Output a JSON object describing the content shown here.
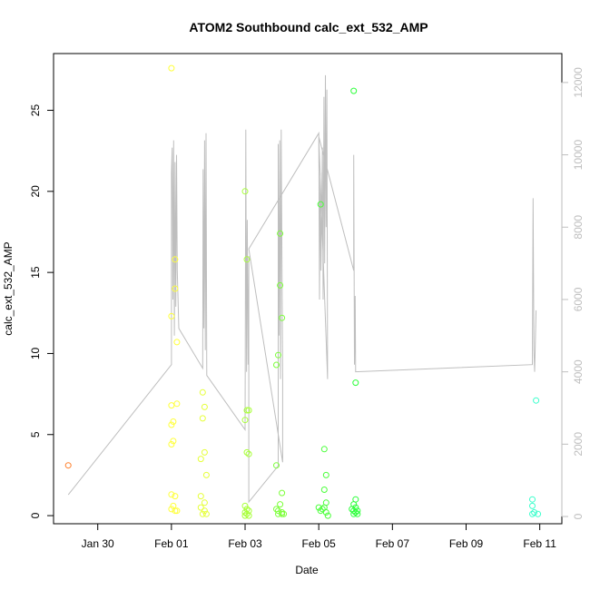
{
  "chart_data": {
    "type": "scatter",
    "title": "ATOM2 Southbound calc_ext_532_AMP",
    "xlabel": "Date",
    "ylabel": "calc_ext_532_AMP",
    "x_ticks": [
      "Jan 30",
      "Feb 01",
      "Feb 03",
      "Feb 05",
      "Feb 07",
      "Feb 09",
      "Feb 11"
    ],
    "x_tick_days": [
      29,
      31,
      33,
      35,
      37,
      39,
      41
    ],
    "xlim_days": [
      27.8,
      41.6
    ],
    "ylim": [
      -0.5,
      28.5
    ],
    "y_ticks": [
      0,
      5,
      10,
      15,
      20,
      25
    ],
    "y2lim": [
      -200,
      12800
    ],
    "y2_ticks": [
      0,
      2000,
      4000,
      6000,
      8000,
      10000,
      12000
    ],
    "grid": false,
    "colors": {
      "jan28": "#ff7f2a",
      "feb01": "#ffff3a",
      "feb02": "#e6ff3a",
      "feb03": "#a8ff3a",
      "feb04": "#7cff3a",
      "feb05": "#4bff3a",
      "feb06": "#2cff3a",
      "feb10": "#3affcc",
      "line": "#bebebe"
    },
    "series": [
      {
        "color_key": "jan28",
        "points": [
          [
            28.2,
            3.1
          ]
        ]
      },
      {
        "color_key": "feb01",
        "points": [
          [
            31.0,
            27.6
          ],
          [
            31.0,
            12.3
          ],
          [
            31.1,
            15.8
          ],
          [
            31.1,
            14.0
          ],
          [
            31.15,
            10.7
          ],
          [
            31.0,
            6.8
          ],
          [
            31.15,
            6.9
          ],
          [
            31.05,
            5.8
          ],
          [
            31.0,
            5.6
          ],
          [
            31.05,
            4.6
          ],
          [
            31.0,
            4.4
          ],
          [
            31.0,
            1.3
          ],
          [
            31.1,
            1.2
          ],
          [
            31.05,
            0.6
          ],
          [
            31.0,
            0.4
          ],
          [
            31.1,
            0.3
          ],
          [
            31.15,
            0.3
          ]
        ]
      },
      {
        "color_key": "feb02",
        "points": [
          [
            31.85,
            7.6
          ],
          [
            31.9,
            6.7
          ],
          [
            31.85,
            6.0
          ],
          [
            31.9,
            3.9
          ],
          [
            31.8,
            3.5
          ],
          [
            31.95,
            2.5
          ],
          [
            31.8,
            1.2
          ],
          [
            31.9,
            0.8
          ],
          [
            31.8,
            0.5
          ],
          [
            31.9,
            0.3
          ],
          [
            31.85,
            0.1
          ],
          [
            31.95,
            0.1
          ]
        ]
      },
      {
        "color_key": "feb03",
        "points": [
          [
            33.0,
            20.0
          ],
          [
            33.05,
            15.8
          ],
          [
            33.05,
            6.5
          ],
          [
            33.1,
            6.5
          ],
          [
            33.0,
            5.9
          ],
          [
            33.05,
            3.9
          ],
          [
            33.1,
            3.8
          ],
          [
            33.0,
            0.6
          ],
          [
            33.05,
            0.4
          ],
          [
            33.1,
            0.3
          ],
          [
            33.0,
            0.2
          ],
          [
            33.05,
            0.1
          ],
          [
            33.0,
            0.0
          ],
          [
            33.1,
            0.0
          ]
        ]
      },
      {
        "color_key": "feb04",
        "points": [
          [
            33.95,
            17.4
          ],
          [
            33.95,
            14.2
          ],
          [
            34.0,
            12.2
          ],
          [
            33.9,
            9.9
          ],
          [
            33.85,
            9.3
          ],
          [
            33.85,
            3.1
          ],
          [
            34.0,
            1.4
          ],
          [
            33.95,
            0.7
          ],
          [
            33.85,
            0.4
          ],
          [
            33.9,
            0.3
          ],
          [
            34.0,
            0.2
          ],
          [
            34.05,
            0.1
          ],
          [
            33.9,
            0.1
          ],
          [
            34.0,
            0.1
          ]
        ]
      },
      {
        "color_key": "feb05",
        "points": [
          [
            35.05,
            19.2
          ],
          [
            35.15,
            4.1
          ],
          [
            35.2,
            2.5
          ],
          [
            35.15,
            1.6
          ],
          [
            35.2,
            0.8
          ],
          [
            35.15,
            0.5
          ],
          [
            35.0,
            0.5
          ],
          [
            35.1,
            0.4
          ],
          [
            35.05,
            0.3
          ],
          [
            35.2,
            0.2
          ],
          [
            35.25,
            0.0
          ]
        ]
      },
      {
        "color_key": "feb06",
        "points": [
          [
            35.95,
            26.2
          ],
          [
            36.0,
            8.2
          ],
          [
            36.0,
            1.0
          ],
          [
            35.95,
            0.7
          ],
          [
            36.0,
            0.5
          ],
          [
            35.9,
            0.4
          ],
          [
            35.95,
            0.3
          ],
          [
            36.05,
            0.3
          ],
          [
            36.0,
            0.2
          ],
          [
            35.95,
            0.1
          ],
          [
            36.05,
            0.1
          ]
        ]
      },
      {
        "color_key": "feb10",
        "points": [
          [
            40.9,
            7.1
          ],
          [
            40.8,
            1.0
          ],
          [
            40.8,
            0.6
          ],
          [
            40.85,
            0.2
          ],
          [
            40.95,
            0.1
          ],
          [
            40.8,
            0.1
          ]
        ]
      }
    ],
    "secondary_series": {
      "name": "",
      "axis": "right",
      "color_key": "line",
      "points": [
        [
          28.2,
          600
        ],
        [
          31.0,
          4200
        ],
        [
          31.0,
          9500
        ],
        [
          31.02,
          10200
        ],
        [
          31.04,
          6000
        ],
        [
          31.06,
          10400
        ],
        [
          31.08,
          5000
        ],
        [
          31.1,
          9800
        ],
        [
          31.12,
          5800
        ],
        [
          31.14,
          10000
        ],
        [
          31.16,
          6800
        ],
        [
          31.2,
          5200
        ],
        [
          31.85,
          4100
        ],
        [
          31.86,
          9600
        ],
        [
          31.88,
          5200
        ],
        [
          31.9,
          10400
        ],
        [
          31.92,
          4600
        ],
        [
          31.94,
          10600
        ],
        [
          31.96,
          3900
        ],
        [
          33.0,
          2400
        ],
        [
          33.02,
          10700
        ],
        [
          33.04,
          4000
        ],
        [
          33.06,
          8200
        ],
        [
          33.08,
          4200
        ],
        [
          33.1,
          7200
        ],
        [
          33.1,
          400
        ],
        [
          33.9,
          1400
        ],
        [
          33.9,
          10300
        ],
        [
          33.92,
          5000
        ],
        [
          33.94,
          10400
        ],
        [
          33.96,
          3800
        ],
        [
          33.98,
          10700
        ],
        [
          34.0,
          7200
        ],
        [
          34.02,
          3800
        ],
        [
          34.02,
          1500
        ],
        [
          33.1,
          7400
        ],
        [
          35.0,
          10600
        ],
        [
          35.02,
          6000
        ],
        [
          35.04,
          9500
        ],
        [
          35.06,
          6800
        ],
        [
          35.1,
          10200
        ],
        [
          35.12,
          6000
        ],
        [
          35.14,
          11600
        ],
        [
          35.16,
          7000
        ],
        [
          35.18,
          12200
        ],
        [
          35.2,
          8000
        ],
        [
          35.22,
          11800
        ],
        [
          35.24,
          3800
        ],
        [
          35.0,
          10500
        ],
        [
          35.95,
          6800
        ],
        [
          35.95,
          10000
        ],
        [
          35.97,
          4200
        ],
        [
          35.99,
          6100
        ],
        [
          36.0,
          4000
        ],
        [
          40.8,
          4200
        ],
        [
          40.82,
          8800
        ],
        [
          40.84,
          4600
        ],
        [
          40.86,
          4000
        ],
        [
          40.9,
          5700
        ]
      ]
    }
  }
}
